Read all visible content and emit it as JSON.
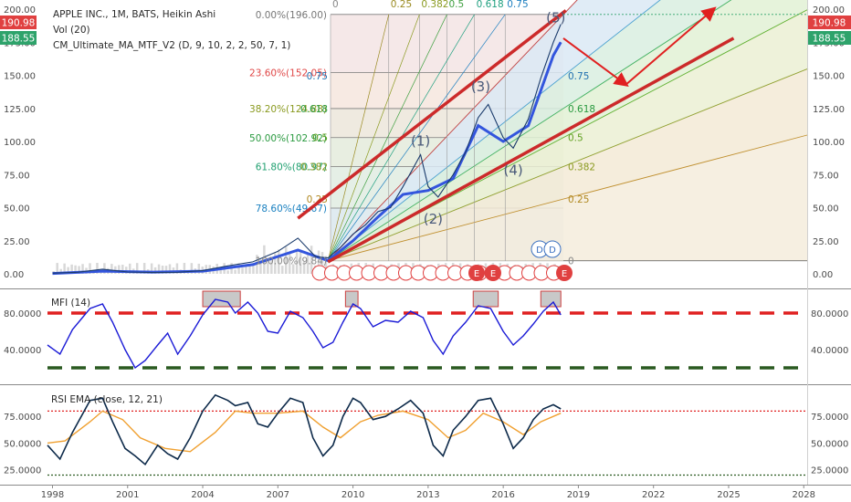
{
  "header": {
    "title": "APPLE INC., 1M, BATS, Heikin Ashi",
    "indicator_1": "Vol (20)",
    "indicator_2": "CM_Ultimate_MA_MTF_V2 (D, 9, 10, 2, 2, 50, 7, 1)"
  },
  "price_badges": {
    "upper": "190.98",
    "lower": "188.55"
  },
  "colors": {
    "price_line": "#1a3a6b",
    "ma_blue": "#3355dd",
    "ma_orange": "#f08030",
    "fib_red": "#cc3333",
    "badge_red": "#e04040",
    "badge_green": "#2ea36b",
    "mfi_line": "#1a1ad6",
    "rsi_line": "#0d2a4a",
    "rsi_ema": "#f0a030",
    "overbought": "#e02020",
    "oversold": "#2a5a20",
    "arrow": "#e02020"
  },
  "chart_data": [
    {
      "type": "line",
      "panel": "price",
      "y_ticks": [
        "200.00",
        "175.00",
        "150.00",
        "125.00",
        "100.00",
        "75.00",
        "50.00",
        "25.00",
        "0.00"
      ],
      "ylim": [
        0,
        200
      ],
      "x_ticks": [
        "1998",
        "2001",
        "2004",
        "2007",
        "2010",
        "2013",
        "2016",
        "2019",
        "2022",
        "2025",
        "2028"
      ],
      "xlim": [
        1997.8,
        2028.1
      ],
      "fib_retracements": [
        {
          "label": "0.00%(196.00)",
          "value": 196.0
        },
        {
          "label": "23.60%(152.05)",
          "value": 152.05
        },
        {
          "label": "38.20%(124.88)",
          "value": 124.88
        },
        {
          "label": "50.00%(102.92)",
          "value": 102.92
        },
        {
          "label": "61.80%(80.97)",
          "value": 80.97
        },
        {
          "label": "78.60%(49.67)",
          "value": 49.67
        },
        {
          "label": "100.00%(9.84)",
          "value": 9.84
        }
      ],
      "fan_top_labels": [
        "0",
        "0.25",
        "0.382",
        "0.5",
        "0.618",
        "0.75"
      ],
      "fan_right_labels": [
        "0.75",
        "0.618",
        "0.5",
        "0.382",
        "0.25",
        "0"
      ],
      "fan_left_labels": [
        "0.75",
        "0.618",
        "0.5",
        "0.382",
        "0.25"
      ],
      "waves": [
        "(1)",
        "(2)",
        "(3)",
        "(4)",
        "(5)"
      ],
      "event_markers": {
        "earnings": "E",
        "dividend": "D"
      },
      "series": [
        {
          "name": "Close",
          "x": [
            1998,
            1999,
            2000,
            2001,
            2002,
            2003,
            2004,
            2005,
            2006,
            2007,
            2007.8,
            2008.5,
            2009,
            2009.5,
            2010,
            2010.5,
            2011,
            2011.5,
            2012,
            2012.7,
            2013,
            2013.4,
            2014,
            2014.5,
            2015,
            2015.4,
            2016,
            2016.4,
            2017,
            2017.5,
            2018,
            2018.3
          ],
          "values": [
            0.5,
            1.2,
            3.5,
            1.4,
            1.0,
            1.2,
            2.5,
            6.0,
            9.0,
            17.0,
            27.0,
            13.0,
            12.0,
            20.0,
            30.0,
            37.0,
            47.0,
            50.0,
            66.0,
            90.0,
            66.0,
            58.0,
            75.0,
            92.0,
            118.0,
            128.0,
            103.0,
            95.0,
            117.0,
            148.0,
            175.0,
            188.55
          ]
        },
        {
          "name": "MA",
          "x": [
            1998,
            2000,
            2002,
            2004,
            2006,
            2007.8,
            2009,
            2010,
            2011,
            2012,
            2013,
            2014,
            2015,
            2016,
            2017,
            2018,
            2018.3
          ],
          "values": [
            0.3,
            2.0,
            1.3,
            2.0,
            7.0,
            18.0,
            10.0,
            25.0,
            43.0,
            60.0,
            63.0,
            72.0,
            112.0,
            100.0,
            112.0,
            165.0,
            175.0
          ]
        }
      ]
    },
    {
      "type": "line",
      "panel": "mfi",
      "title": "MFI (14)",
      "y_ticks": [
        "80.0000",
        "40.0000"
      ],
      "ylim": [
        10,
        100
      ],
      "overbought": 80,
      "oversold": 20,
      "series": [
        {
          "name": "MFI",
          "x": [
            1997.8,
            1998.3,
            1998.8,
            1999.5,
            2000.0,
            2000.4,
            2000.9,
            2001.3,
            2001.7,
            2002.2,
            2002.6,
            2003.0,
            2003.5,
            2004.0,
            2004.5,
            2005.0,
            2005.3,
            2005.8,
            2006.2,
            2006.6,
            2007.0,
            2007.5,
            2008.0,
            2008.4,
            2008.8,
            2009.2,
            2009.6,
            2010.0,
            2010.3,
            2010.8,
            2011.3,
            2011.8,
            2012.3,
            2012.8,
            2013.2,
            2013.6,
            2014.0,
            2014.5,
            2015.0,
            2015.5,
            2016.0,
            2016.4,
            2016.8,
            2017.2,
            2017.6,
            2018.0,
            2018.3
          ],
          "values": [
            45,
            35,
            62,
            85,
            90,
            70,
            40,
            20,
            28,
            45,
            58,
            35,
            55,
            78,
            95,
            92,
            80,
            92,
            80,
            60,
            58,
            82,
            75,
            60,
            42,
            48,
            70,
            90,
            85,
            65,
            72,
            70,
            82,
            75,
            50,
            35,
            55,
            70,
            88,
            85,
            60,
            45,
            55,
            68,
            82,
            92,
            78
          ]
        }
      ]
    },
    {
      "type": "line",
      "panel": "rsi",
      "title": "RSI EMA (close, 12, 21)",
      "y_ticks": [
        "75.0000",
        "50.0000",
        "25.0000"
      ],
      "ylim": [
        17,
        100
      ],
      "overbought": 80,
      "oversold": 20,
      "series": [
        {
          "name": "RSI",
          "x": [
            1997.8,
            1998.3,
            1998.8,
            1999.5,
            2000.0,
            2000.4,
            2000.9,
            2001.3,
            2001.7,
            2002.2,
            2002.6,
            2003.0,
            2003.5,
            2004.0,
            2004.5,
            2005.0,
            2005.3,
            2005.8,
            2006.2,
            2006.6,
            2007.0,
            2007.5,
            2008.0,
            2008.4,
            2008.8,
            2009.2,
            2009.6,
            2010.0,
            2010.3,
            2010.8,
            2011.3,
            2011.8,
            2012.3,
            2012.8,
            2013.2,
            2013.6,
            2014.0,
            2014.5,
            2015.0,
            2015.5,
            2016.0,
            2016.4,
            2016.8,
            2017.2,
            2017.6,
            2018.0,
            2018.3
          ],
          "values": [
            48,
            35,
            60,
            90,
            92,
            70,
            45,
            38,
            30,
            48,
            40,
            35,
            55,
            80,
            95,
            90,
            85,
            88,
            68,
            65,
            78,
            92,
            88,
            55,
            38,
            48,
            75,
            92,
            88,
            72,
            75,
            82,
            90,
            78,
            48,
            38,
            62,
            75,
            90,
            92,
            68,
            45,
            55,
            72,
            82,
            86,
            82
          ]
        },
        {
          "name": "EMA",
          "x": [
            1997.8,
            1998.5,
            1999.5,
            2000.0,
            2000.8,
            2001.5,
            2002.5,
            2003.5,
            2004.5,
            2005.3,
            2006.0,
            2007.0,
            2008.0,
            2008.8,
            2009.5,
            2010.3,
            2011.0,
            2012.0,
            2013.0,
            2013.8,
            2014.5,
            2015.2,
            2016.0,
            2016.8,
            2017.5,
            2018.3
          ],
          "values": [
            50,
            52,
            70,
            80,
            72,
            55,
            45,
            42,
            60,
            80,
            78,
            78,
            80,
            65,
            55,
            70,
            76,
            80,
            72,
            55,
            62,
            78,
            70,
            58,
            70,
            78
          ]
        }
      ]
    }
  ]
}
